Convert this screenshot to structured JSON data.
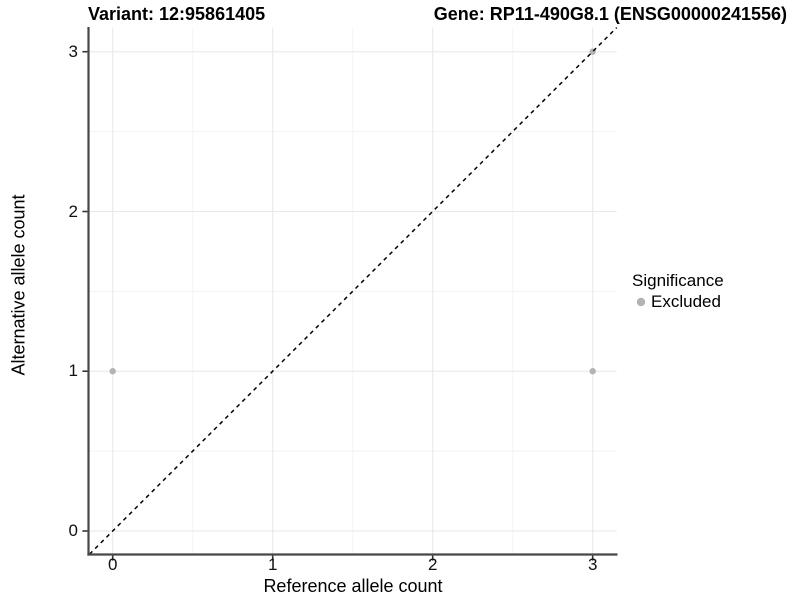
{
  "title": {
    "variant": "Variant: 12:95861405",
    "gene": "Gene: RP11-490G8.1 (ENSG00000241556)"
  },
  "axes": {
    "x": {
      "label": "Reference allele count",
      "ticks": [
        "0",
        "1",
        "2",
        "3"
      ]
    },
    "y": {
      "label": "Alternative allele count",
      "ticks": [
        "0",
        "1",
        "2",
        "3"
      ]
    }
  },
  "legend": {
    "title": "Significance",
    "items": [
      {
        "label": "Excluded",
        "color": "#b3b3b3"
      }
    ]
  },
  "chart_data": {
    "type": "scatter",
    "title": "Variant: 12:95861405 / Gene: RP11-490G8.1 (ENSG00000241556)",
    "xlabel": "Reference allele count",
    "ylabel": "Alternative allele count",
    "xlim": [
      -0.15,
      3.15
    ],
    "ylim": [
      -0.15,
      3.15
    ],
    "x_ticks": [
      0,
      1,
      2,
      3
    ],
    "y_ticks": [
      0,
      1,
      2,
      3
    ],
    "grid": "major and minor gridlines",
    "legend_position": "right",
    "series": [
      {
        "name": "Excluded",
        "color": "#b3b3b3",
        "points": [
          [
            0,
            1
          ],
          [
            3,
            1
          ],
          [
            3,
            3
          ]
        ]
      }
    ],
    "reference_line": {
      "slope": 1,
      "intercept": 0,
      "style": "dashed",
      "color": "#000000"
    }
  },
  "colors": {
    "background": "#ffffff",
    "grid_major": "#e7e7e7",
    "grid_minor": "#f3f3f3",
    "axis_line": "#474747",
    "tick_mark": "#333333",
    "point": "#b3b3b3"
  }
}
